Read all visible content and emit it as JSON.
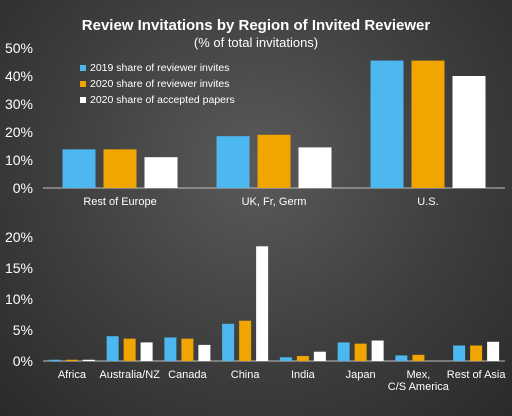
{
  "title": "Review Invitations by Region of Invited Reviewer",
  "subtitle": "(% of total invitations)",
  "colors": {
    "s2019": "#4db8f0",
    "s2020": "#f0a500",
    "s2020acc": "#ffffff",
    "axis": "#bfbfbf"
  },
  "chart_data": [
    {
      "type": "bar",
      "categories": [
        "Rest of Europe",
        "UK, Fr, Germ",
        "U.S."
      ],
      "ylim": [
        0,
        50
      ],
      "yticks": [
        "0%",
        "10%",
        "20%",
        "30%",
        "40%",
        "50%"
      ],
      "yticks_values": [
        0,
        10,
        20,
        30,
        40,
        50
      ],
      "grid": false,
      "legend": "top-left",
      "series": [
        {
          "name": "2019 share of reviewer invites",
          "values": [
            13.8,
            18.5,
            45.5
          ]
        },
        {
          "name": "2020 share of reviewer invites",
          "values": [
            13.8,
            19.0,
            45.5
          ]
        },
        {
          "name": "2020 share of accepted papers",
          "values": [
            11.0,
            14.5,
            40.0
          ]
        }
      ]
    },
    {
      "type": "bar",
      "categories": [
        "Africa",
        "Australia/NZ",
        "Canada",
        "China",
        "India",
        "Japan",
        "Mex, C/S America",
        "Rest of Asia"
      ],
      "ylim": [
        0,
        20
      ],
      "yticks": [
        "0%",
        "5%",
        "10%",
        "15%",
        "20%"
      ],
      "yticks_values": [
        0,
        5,
        10,
        15,
        20
      ],
      "grid": false,
      "series": [
        {
          "values": [
            0.2,
            4.0,
            3.8,
            6.0,
            0.6,
            3.0,
            0.9,
            2.5
          ]
        },
        {
          "values": [
            0.2,
            3.6,
            3.6,
            6.5,
            0.8,
            2.8,
            1.0,
            2.5
          ]
        },
        {
          "values": [
            0.2,
            3.0,
            2.6,
            18.5,
            1.5,
            3.3,
            0.0,
            3.1
          ]
        }
      ]
    }
  ]
}
